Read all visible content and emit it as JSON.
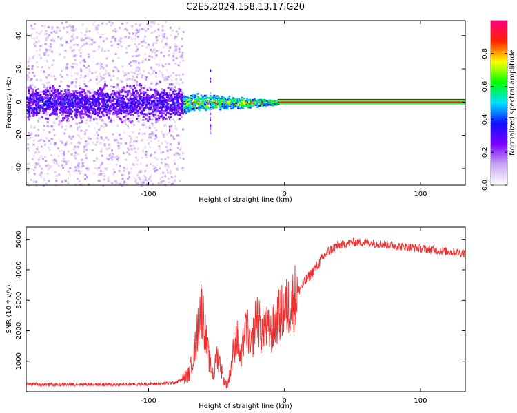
{
  "title": "C2E5.2024.158.13.17.G20",
  "colors": {
    "snr_line": "#f03030",
    "frame": "#000000",
    "zero_band": "#ff1a1a"
  },
  "chart_data": [
    {
      "type": "heatmap",
      "xlabel": "Height of straight line (km)",
      "ylabel": "Frequency (Hz)",
      "xlim": [
        -190,
        133
      ],
      "ylim": [
        -50,
        49
      ],
      "x_ticks": [
        -100,
        0,
        100
      ],
      "x_tick_labels": [
        "-100",
        "0",
        "100"
      ],
      "y_ticks": [
        -40,
        -20,
        0,
        20,
        40
      ],
      "y_tick_labels": [
        "-40",
        "-20",
        "0",
        "20",
        "40"
      ],
      "colorbar": {
        "label": "Normalized spectral amplitude",
        "range": [
          0.0,
          1.0
        ],
        "ticks": [
          0.0,
          0.2,
          0.4,
          0.6,
          0.8
        ],
        "tick_labels": [
          "0.0",
          "0.2",
          "0.4",
          "0.6",
          "0.8"
        ],
        "colormap": [
          "#ffffff",
          "#c9a6f0",
          "#7a00ff",
          "#1010ff",
          "#00e0ff",
          "#00ff00",
          "#ffff00",
          "#ff2000",
          "#ff0080"
        ]
      },
      "features": {
        "carrier_frequency_hz": 0,
        "scatter_region_x": [
          -190,
          -75
        ],
        "transition_region_x": [
          -75,
          -5
        ],
        "clean_region_x": [
          -5,
          133
        ]
      }
    },
    {
      "type": "line",
      "xlabel": "Height of straight line (km)",
      "ylabel": "SNR (10 * v/v)",
      "xlim": [
        -190,
        133
      ],
      "ylim": [
        0,
        5400
      ],
      "x_ticks": [
        -100,
        0,
        100
      ],
      "x_tick_labels": [
        "-100",
        "0",
        "100"
      ],
      "y_ticks": [
        1000,
        2000,
        3000,
        4000,
        5000
      ],
      "y_tick_labels": [
        "1000",
        "2000",
        "3000",
        "4000",
        "5000"
      ],
      "series": [
        {
          "x": [
            -190,
            -170,
            -150,
            -130,
            -110,
            -90,
            -80,
            -75,
            -70,
            -65,
            -62,
            -60,
            -58,
            -55,
            -52,
            -50,
            -47,
            -45,
            -42,
            -40,
            -37,
            -35,
            -32,
            -30,
            -27,
            -25,
            -22,
            -20,
            -17,
            -15,
            -12,
            -10,
            -5,
            0,
            5,
            10,
            15,
            20,
            25,
            30,
            35,
            40,
            50,
            60,
            70,
            80,
            90,
            100,
            110,
            120,
            133
          ],
          "y": [
            250,
            230,
            240,
            230,
            240,
            260,
            300,
            400,
            600,
            1600,
            2800,
            2600,
            1800,
            900,
            500,
            1200,
            900,
            400,
            200,
            600,
            1500,
            1800,
            900,
            1800,
            2100,
            1300,
            2100,
            2500,
            1900,
            2200,
            2000,
            1900,
            2400,
            2700,
            2900,
            3300,
            3600,
            3900,
            4200,
            4500,
            4700,
            4800,
            4900,
            4900,
            4850,
            4800,
            4750,
            4700,
            4650,
            4600,
            4550
          ]
        }
      ]
    }
  ]
}
